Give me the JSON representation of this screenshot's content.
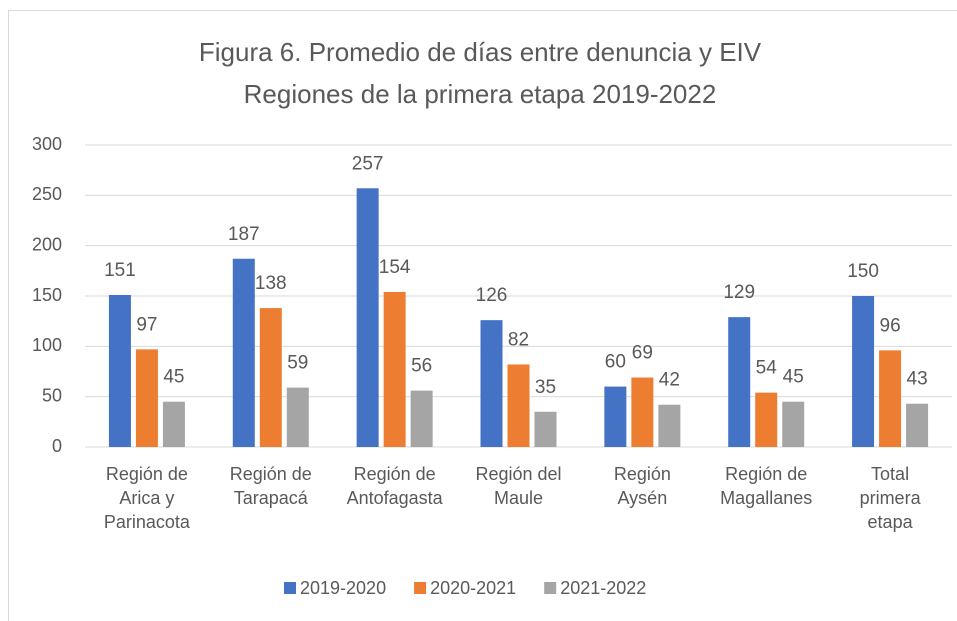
{
  "chart_data": {
    "type": "bar",
    "title": "Figura 6. Promedio de días entre denuncia y EIV",
    "subtitle": "Regiones de la primera etapa 2019-2022",
    "categories": [
      "Región de Arica y Parinacota",
      "Región de Tarapacá",
      "Región de Antofagasta",
      "Región del Maule",
      "Región Aysén",
      "Región de Magallanes",
      "Total primera etapa"
    ],
    "series": [
      {
        "name": "2019-2020",
        "color": "#4472c4",
        "values": [
          151,
          187,
          257,
          126,
          60,
          129,
          150
        ]
      },
      {
        "name": "2020-2021",
        "color": "#ed7d31",
        "values": [
          97,
          138,
          154,
          82,
          69,
          54,
          96
        ]
      },
      {
        "name": "2021-2022",
        "color": "#a5a5a5",
        "values": [
          45,
          59,
          56,
          35,
          42,
          45,
          43
        ]
      }
    ],
    "ylim": [
      0,
      300
    ],
    "yticks": [
      0,
      50,
      100,
      150,
      200,
      250,
      300
    ],
    "grid": true,
    "legend": "bottom"
  }
}
